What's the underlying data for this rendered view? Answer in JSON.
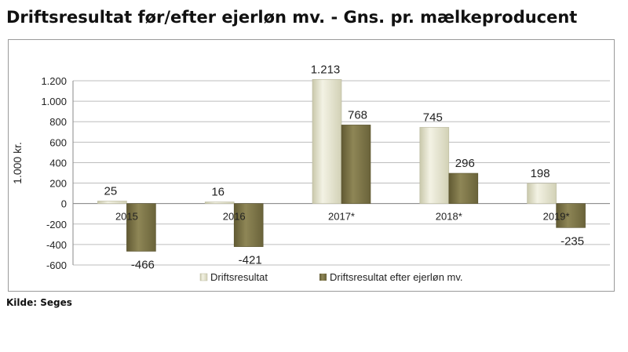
{
  "title": "Driftsresultat før/efter ejerløn mv. - Gns. pr. mælkeproducent",
  "source": "Kilde: Seges",
  "chart_data": {
    "type": "bar",
    "title": "Driftsresultat før/efter ejerløn mv. - Gns. pr. mælkeproducent",
    "ylabel": "1.000 kr.",
    "xlabel": "",
    "ylim": [
      -600,
      1200
    ],
    "yticks": [
      {
        "value": 1200,
        "label": "1.200"
      },
      {
        "value": 1000,
        "label": "1.000"
      },
      {
        "value": 800,
        "label": "800"
      },
      {
        "value": 600,
        "label": "600"
      },
      {
        "value": 400,
        "label": "400"
      },
      {
        "value": 200,
        "label": "200"
      },
      {
        "value": 0,
        "label": "0"
      },
      {
        "value": -200,
        "label": "-200"
      },
      {
        "value": -400,
        "label": "-400"
      },
      {
        "value": -600,
        "label": "-600"
      }
    ],
    "grid": true,
    "legend": "bottom",
    "categories": [
      "2015",
      "2016",
      "2017*",
      "2018*",
      "2019*"
    ],
    "series": [
      {
        "name": "Driftsresultat",
        "color": "#deddc5",
        "values": [
          25,
          16,
          1213,
          745,
          198
        ],
        "labels": [
          "25",
          "16",
          "1.213",
          "745",
          "198"
        ]
      },
      {
        "name": "Driftsresultat efter ejerløn mv.",
        "color": "#7b7346",
        "values": [
          -466,
          -421,
          768,
          296,
          -235
        ],
        "labels": [
          "-466",
          "-421",
          "768",
          "296",
          "-235"
        ]
      }
    ]
  }
}
